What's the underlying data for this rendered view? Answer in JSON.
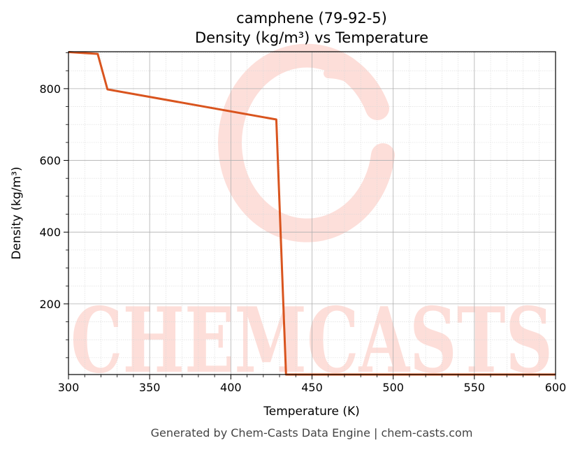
{
  "chart_data": {
    "type": "line",
    "title": "camphene (79-92-5)",
    "subtitle": "Density (kg/m³) vs Temperature",
    "xlabel": "Temperature (K)",
    "ylabel": "Density (kg/m³)",
    "xlim": [
      300,
      600
    ],
    "ylim": [
      3,
      903
    ],
    "xticks": [
      300,
      350,
      400,
      450,
      500,
      550,
      600
    ],
    "yticks": [
      200,
      400,
      600,
      800
    ],
    "grid": true,
    "minor_grid": true,
    "series": [
      {
        "color": "#d9541e",
        "x": [
          300,
          318,
          324,
          428,
          434,
          440,
          600
        ],
        "y": [
          902,
          897,
          798,
          714,
          3,
          3,
          3
        ]
      }
    ]
  },
  "watermark": {
    "text": "CHEMCASTS",
    "color": "#fdd9d3"
  },
  "footer": "Generated by Chem-Casts Data Engine | chem-casts.com"
}
